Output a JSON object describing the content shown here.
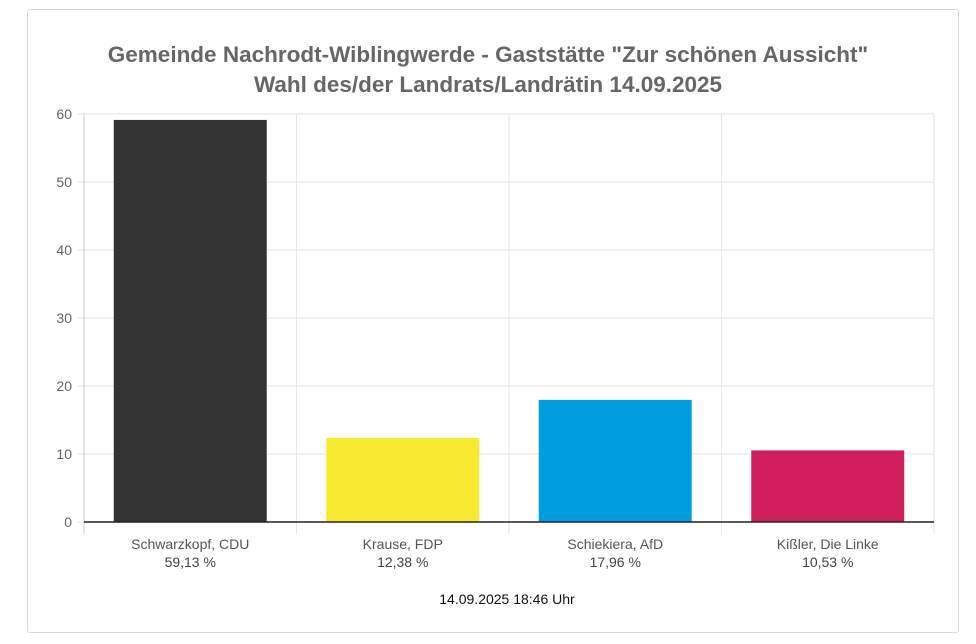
{
  "title_lines": [
    "Gemeinde Nachrodt-Wiblingwerde - Gaststätte \"Zur schönen Aussicht\"",
    "Wahl des/der Landrats/Landrätin 14.09.2025"
  ],
  "timestamp": "14.09.2025 18:46 Uhr",
  "chart_data": {
    "type": "bar",
    "title": "Gemeinde Nachrodt-Wiblingwerde - Gaststätte \"Zur schönen Aussicht\" Wahl des/der Landrats/Landrätin 14.09.2025",
    "categories": [
      "Schwarzkopf, CDU",
      "Krause, FDP",
      "Schiekiera, AfD",
      "Kißler, Die Linke"
    ],
    "values": [
      59.13,
      12.38,
      17.96,
      10.53
    ],
    "value_labels": [
      "59,13 %",
      "12,38 %",
      "17,96 %",
      "10,53 %"
    ],
    "colors": [
      "#333333",
      "#f7ea31",
      "#009ee0",
      "#d01f5c"
    ],
    "ylim": [
      0,
      60
    ],
    "yticks": [
      0,
      10,
      20,
      30,
      40,
      50,
      60
    ],
    "grid": true,
    "xlabel": "",
    "ylabel": ""
  }
}
